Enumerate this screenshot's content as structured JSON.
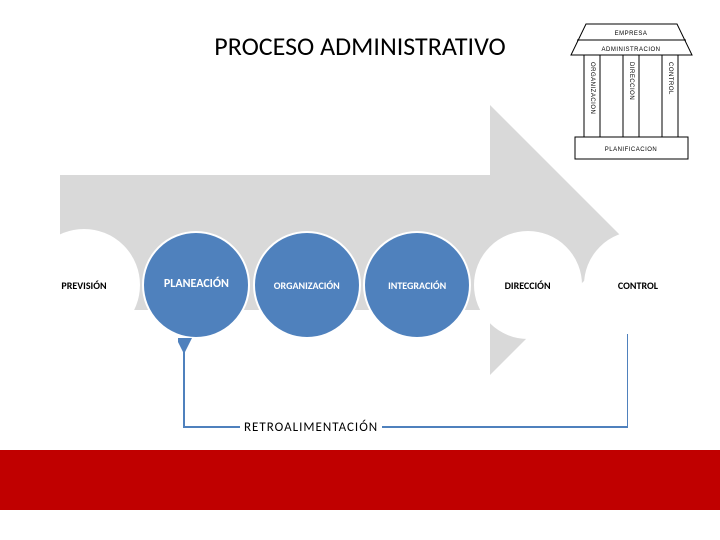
{
  "title": {
    "text": "PROCESO ADMINISTRATIVO",
    "fontsize": 26,
    "color": "#000000"
  },
  "arrow": {
    "fill": "#d9d9d9",
    "head_width": 135,
    "head_half_height": 135
  },
  "steps": [
    {
      "label": "PREVISIÓN",
      "size": 112,
      "fill": "#ffffff",
      "fontsize": 10,
      "text_color": "#000000"
    },
    {
      "label": "PLANEACIÓN",
      "size": 108,
      "fill": "#4f81bd",
      "fontsize": 12,
      "text_color": "#ffffff"
    },
    {
      "label": "ORGANIZACIÓN",
      "size": 108,
      "fill": "#4f81bd",
      "fontsize": 10,
      "text_color": "#ffffff"
    },
    {
      "label": "INTEGRACIÓN",
      "size": 108,
      "fill": "#4f81bd",
      "fontsize": 10,
      "text_color": "#ffffff"
    },
    {
      "label": "DIRECCIÓN",
      "size": 108,
      "fill": "#ffffff",
      "fontsize": 10,
      "text_color": "#000000"
    },
    {
      "label": "CONTROL",
      "size": 108,
      "fill": "#ffffff",
      "fontsize": 10,
      "text_color": "#000000"
    }
  ],
  "feedback": {
    "label": "RETROALIMENTACIÓN",
    "fontsize": 13,
    "line_color": "#4f81bd",
    "line_width": 2
  },
  "bottom_bar": {
    "fill": "#c00000"
  },
  "mini_building": {
    "labels": {
      "roof_top": "EMPRESA",
      "roof_bottom": "ADMINISTRACION",
      "base": "PLANIFICACION",
      "pillars": [
        "ORGANIZACION",
        "DIRECCION",
        "CONTROL"
      ]
    },
    "stroke": "#000000"
  }
}
